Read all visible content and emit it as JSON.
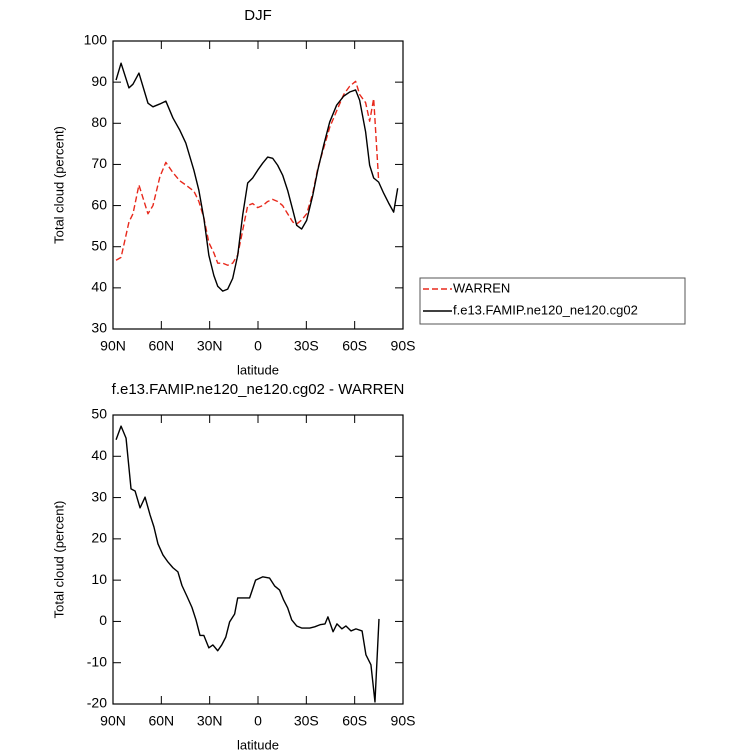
{
  "chart_data": [
    {
      "type": "line",
      "title": "DJF",
      "xlabel": "latitude",
      "ylabel": "Total cloud (percent)",
      "xlim": [
        90,
        -90
      ],
      "xticks": [
        {
          "value": 90,
          "label": "90N"
        },
        {
          "value": 60,
          "label": "60N"
        },
        {
          "value": 30,
          "label": "30N"
        },
        0,
        {
          "value": -30,
          "label": "30S"
        },
        {
          "value": -60,
          "label": "60S"
        },
        {
          "value": -90,
          "label": "90S"
        }
      ],
      "ylim": [
        30,
        100
      ],
      "yticks": [
        30,
        40,
        50,
        60,
        70,
        80,
        90,
        100
      ],
      "legend": "right",
      "x": [
        88.1,
        85.0,
        80.1,
        77.6,
        73.9,
        68.3,
        65.2,
        60.9,
        57.2,
        52.8,
        48.5,
        44.8,
        39.8,
        36.7,
        33.6,
        30.5,
        27.4,
        25.0,
        21.9,
        18.8,
        15.7,
        12.6,
        9.5,
        6.4,
        3.3,
        0.2,
        -2.9,
        -6.0,
        -9.1,
        -12.2,
        -15.3,
        -18.4,
        -21.6,
        -24.0,
        -27.1,
        -30.2,
        -34.0,
        -37.1,
        -40.8,
        -44.5,
        -48.8,
        -53.2,
        -56.9,
        -60.6,
        -63.1,
        -66.8,
        -69.3,
        -71.8,
        -74.9,
        -78.0,
        -81.1,
        -84.2,
        -86.7
      ],
      "series": [
        {
          "name": "WARREN",
          "color": "#e8291c",
          "line_style": "dashed",
          "values": [
            46.7,
            47.4,
            56,
            58,
            65,
            58,
            60,
            67,
            70.5,
            68,
            66,
            65,
            63.5,
            61,
            57,
            51,
            48.5,
            46,
            46,
            45.5,
            46,
            48,
            54,
            60,
            60.5,
            59.5,
            60,
            61,
            61.5,
            61,
            60,
            58,
            56,
            55.5,
            56.5,
            58,
            63,
            69,
            74,
            79,
            83,
            87,
            89,
            90.2,
            87,
            85,
            80.5,
            86,
            66,
            null,
            null,
            null,
            null
          ]
        },
        {
          "name": "f.e13.FAMIP.ne120_ne120.cg02",
          "color": "#000000",
          "line_style": "solid",
          "values": [
            90.5,
            94.6,
            88.6,
            89.5,
            92.2,
            84.9,
            84,
            84.7,
            85.4,
            81.3,
            78.3,
            75.2,
            68.6,
            63.7,
            56.9,
            47.9,
            43,
            40.4,
            39.2,
            39.7,
            42.3,
            47.9,
            57.7,
            65.5,
            66.7,
            68.6,
            70.3,
            71.8,
            71.5,
            69.8,
            67.4,
            63.7,
            58.9,
            55.2,
            54.3,
            56.4,
            62.5,
            68.6,
            74.7,
            80.3,
            84.4,
            86.6,
            87.6,
            88.1,
            85.6,
            77.9,
            69.8,
            66.7,
            65.7,
            63,
            60.6,
            58.4,
            64.2
          ]
        }
      ]
    },
    {
      "type": "line",
      "title": "f.e13.FAMIP.ne120_ne120.cg02 - WARREN",
      "xlabel": "latitude",
      "ylabel": "Total cloud (percent)",
      "xlim": [
        90,
        -90
      ],
      "xticks": [
        {
          "value": 90,
          "label": "90N"
        },
        {
          "value": 60,
          "label": "60N"
        },
        {
          "value": 30,
          "label": "30N"
        },
        0,
        {
          "value": -30,
          "label": "30S"
        },
        {
          "value": -60,
          "label": "60S"
        },
        {
          "value": -90,
          "label": "90S"
        }
      ],
      "ylim": [
        -20,
        50
      ],
      "yticks": [
        -20,
        -10,
        0,
        10,
        20,
        30,
        40,
        50
      ],
      "x": [
        88.1,
        85.0,
        81.9,
        78.8,
        76.3,
        73.2,
        70.1,
        67.0,
        64.6,
        62.1,
        59.0,
        55.9,
        52.8,
        49.7,
        47.2,
        44.1,
        41.0,
        38.5,
        36.0,
        33.6,
        30.5,
        28.0,
        25.0,
        22.5,
        20.0,
        17.6,
        14.5,
        12.6,
        7.7,
        5.2,
        1.5,
        -2.9,
        -7.2,
        -10.3,
        -13.4,
        -15.9,
        -18.4,
        -20.9,
        -24.0,
        -27.1,
        -32.1,
        -35.2,
        -38.5,
        -41.6,
        -43.4,
        -46.6,
        -49.0,
        -52.1,
        -54.6,
        -57.7,
        -60.8,
        -64.6,
        -67.0,
        -70.1,
        -72.6,
        -75.1
      ],
      "series": [
        {
          "color": "#000000",
          "line_style": "solid",
          "values": [
            44,
            47.3,
            44.4,
            32.1,
            31.6,
            27.5,
            30.1,
            25.8,
            22.9,
            18.8,
            16.1,
            14.4,
            13,
            12,
            8.7,
            6.1,
            3.4,
            0.4,
            -3.4,
            -3.4,
            -6.4,
            -5.7,
            -7.1,
            -5.7,
            -3.8,
            -0.1,
            1.8,
            5.7,
            5.7,
            5.7,
            10,
            10.8,
            10.5,
            8.6,
            7.6,
            5.2,
            3.3,
            0.4,
            -1.1,
            -1.6,
            -1.6,
            -1.3,
            -0.8,
            -0.6,
            1.1,
            -2.5,
            -0.6,
            -1.8,
            -1.1,
            -2.3,
            -1.8,
            -2.3,
            -8.1,
            -10.5,
            -19.5,
            0.6
          ]
        }
      ]
    }
  ]
}
